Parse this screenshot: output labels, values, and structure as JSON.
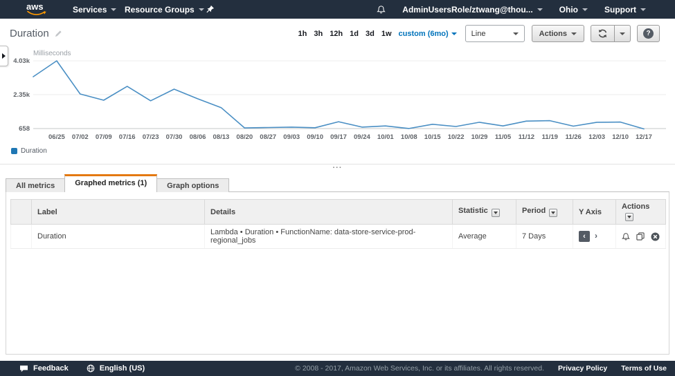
{
  "navbar": {
    "logo_text": "aws",
    "services_label": "Services",
    "resource_groups_label": "Resource Groups",
    "account_label": "AdminUsersRole/ztwang@thou...",
    "region_label": "Ohio",
    "support_label": "Support"
  },
  "header": {
    "title": "Duration",
    "time_ranges": [
      "1h",
      "3h",
      "12h",
      "1d",
      "3d",
      "1w"
    ],
    "custom_range_label": "custom (6mo)",
    "chart_type_value": "Line",
    "actions_label": "Actions",
    "help_glyph": "?"
  },
  "chart_data": {
    "type": "line",
    "title": "Duration",
    "unit_label": "Milliseconds",
    "ylim": [
      658,
      4030
    ],
    "y_ticks": [
      {
        "value": 4030,
        "label": "4.03k"
      },
      {
        "value": 2350,
        "label": "2.35k"
      },
      {
        "value": 658,
        "label": "658"
      }
    ],
    "x_tick_labels": [
      "06/25",
      "07/02",
      "07/09",
      "07/16",
      "07/23",
      "07/30",
      "08/06",
      "08/13",
      "08/20",
      "08/27",
      "09/03",
      "09/10",
      "09/17",
      "09/24",
      "10/01",
      "10/08",
      "10/15",
      "10/22",
      "10/29",
      "11/05",
      "11/12",
      "11/19",
      "11/26",
      "12/03",
      "12/10",
      "12/17"
    ],
    "series": [
      {
        "name": "Duration",
        "color": "#4a8fc4",
        "values": [
          3240,
          4030,
          2380,
          2070,
          2760,
          2040,
          2620,
          2140,
          1700,
          690,
          710,
          730,
          700,
          1000,
          730,
          790,
          660,
          870,
          760,
          970,
          790,
          1030,
          1050,
          780,
          970,
          980,
          640
        ]
      }
    ],
    "legend": [
      "Duration"
    ],
    "legend_position": "bottom-left",
    "grid": true,
    "statistic": "Average",
    "period": "7 Days"
  },
  "legend": {
    "label": "Duration",
    "color": "#1f77b4"
  },
  "grip_glyph": "···",
  "tabs": [
    {
      "label": "All metrics"
    },
    {
      "label": "Graphed metrics (1)"
    },
    {
      "label": "Graph options"
    }
  ],
  "table": {
    "columns": [
      "",
      "Label",
      "Details",
      "Statistic",
      "Period",
      "Y Axis",
      "Actions"
    ],
    "y_axis_left_glyph": "‹",
    "y_axis_right_glyph": "›",
    "rows": [
      {
        "color": "#1f77b4",
        "label": "Duration",
        "details": "Lambda • Duration • FunctionName: data-store-service-prod-regional_jobs",
        "statistic": "Average",
        "period": "7 Days"
      }
    ]
  },
  "footer": {
    "feedback_label": "Feedback",
    "language_label": "English (US)",
    "copyright": "© 2008 - 2017, Amazon Web Services, Inc. or its affiliates. All rights reserved.",
    "privacy_label": "Privacy Policy",
    "terms_label": "Terms of Use"
  }
}
